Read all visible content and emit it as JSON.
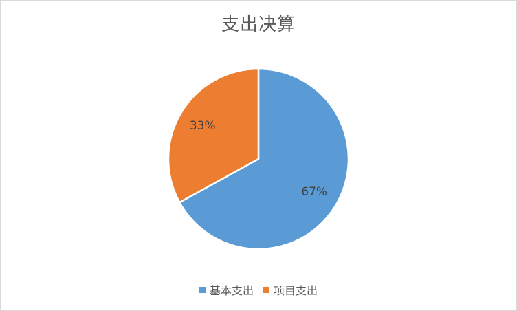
{
  "chart_data": {
    "type": "pie",
    "title": "支出决算",
    "categories": [
      "基本支出",
      "项目支出"
    ],
    "values": [
      67,
      33
    ],
    "labels": [
      "67%",
      "33%"
    ],
    "colors": [
      "#5b9bd5",
      "#ed7d31"
    ],
    "legend": "bottom"
  }
}
